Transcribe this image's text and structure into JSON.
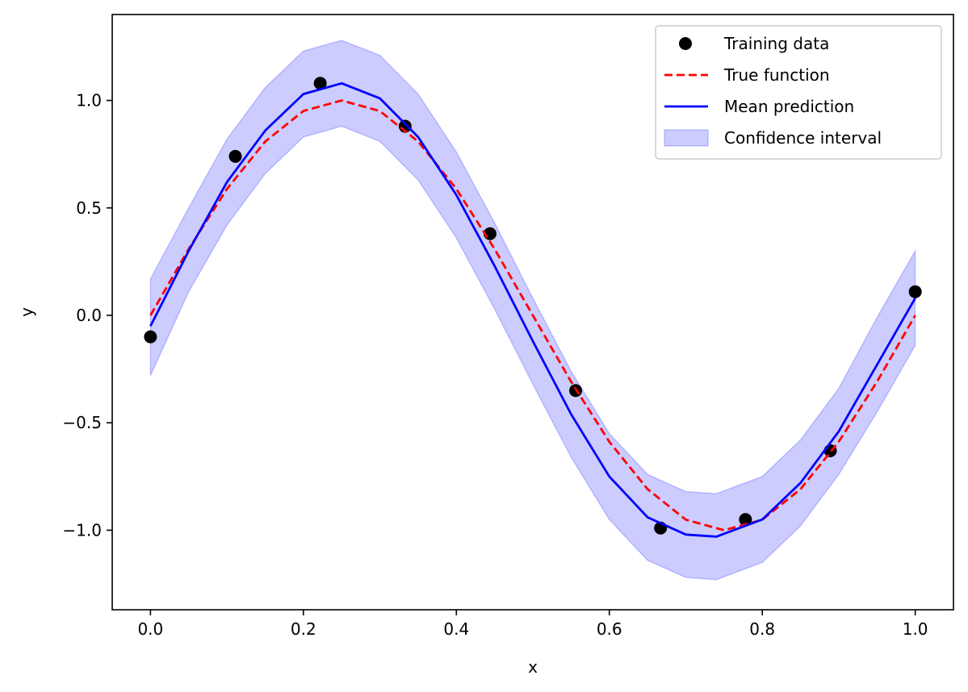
{
  "chart_data": {
    "type": "line",
    "xlabel": "x",
    "ylabel": "y",
    "xlim": [
      -0.05,
      1.05
    ],
    "ylim": [
      -1.37,
      1.4
    ],
    "grid": false,
    "legend_placement": "top-right",
    "x_ticks": [
      0.0,
      0.2,
      0.4,
      0.6,
      0.8,
      1.0
    ],
    "x_tick_labels": [
      "0.0",
      "0.2",
      "0.4",
      "0.6",
      "0.8",
      "1.0"
    ],
    "y_ticks": [
      -1.0,
      -0.5,
      0.0,
      0.5,
      1.0
    ],
    "y_tick_labels": [
      "−1.0",
      "−0.5",
      "0.0",
      "0.5",
      "1.0"
    ],
    "legend": [
      {
        "key": "training",
        "label": "Training data"
      },
      {
        "key": "true",
        "label": "True function"
      },
      {
        "key": "mean",
        "label": "Mean prediction"
      },
      {
        "key": "ci",
        "label": "Confidence interval"
      }
    ],
    "series": [
      {
        "name": "Training data",
        "kind": "scatter",
        "color": "#000000",
        "x": [
          0.0,
          0.111,
          0.222,
          0.333,
          0.444,
          0.556,
          0.667,
          0.778,
          0.889,
          1.0
        ],
        "y": [
          -0.1,
          0.74,
          1.08,
          0.88,
          0.38,
          -0.35,
          -0.99,
          -0.95,
          -0.63,
          0.11
        ]
      },
      {
        "name": "True function",
        "kind": "line",
        "style": "dashed",
        "color": "#ff0000",
        "x": [
          0.0,
          0.05,
          0.1,
          0.15,
          0.2,
          0.25,
          0.3,
          0.35,
          0.4,
          0.45,
          0.5,
          0.55,
          0.6,
          0.65,
          0.7,
          0.75,
          0.8,
          0.85,
          0.9,
          0.95,
          1.0
        ],
        "y": [
          0.0,
          0.309,
          0.588,
          0.809,
          0.951,
          1.0,
          0.951,
          0.809,
          0.588,
          0.309,
          0.0,
          -0.309,
          -0.588,
          -0.809,
          -0.951,
          -1.0,
          -0.951,
          -0.809,
          -0.588,
          -0.309,
          0.0
        ]
      },
      {
        "name": "Mean prediction",
        "kind": "line",
        "style": "solid",
        "color": "#0000ff",
        "x": [
          0.0,
          0.05,
          0.1,
          0.15,
          0.2,
          0.25,
          0.3,
          0.35,
          0.4,
          0.45,
          0.5,
          0.55,
          0.6,
          0.65,
          0.7,
          0.74,
          0.8,
          0.85,
          0.9,
          0.95,
          1.0
        ],
        "y": [
          -0.05,
          0.3,
          0.62,
          0.86,
          1.03,
          1.08,
          1.01,
          0.83,
          0.56,
          0.23,
          -0.12,
          -0.46,
          -0.75,
          -0.94,
          -1.02,
          -1.03,
          -0.95,
          -0.78,
          -0.54,
          -0.23,
          0.08
        ]
      },
      {
        "name": "Confidence interval",
        "kind": "band",
        "color": "#0000ff",
        "x": [
          0.0,
          0.05,
          0.1,
          0.15,
          0.2,
          0.25,
          0.3,
          0.35,
          0.4,
          0.45,
          0.5,
          0.55,
          0.6,
          0.65,
          0.7,
          0.74,
          0.8,
          0.85,
          0.9,
          0.95,
          1.0
        ],
        "lower": [
          -0.28,
          0.11,
          0.42,
          0.66,
          0.83,
          0.88,
          0.81,
          0.63,
          0.36,
          0.03,
          -0.32,
          -0.66,
          -0.95,
          -1.14,
          -1.22,
          -1.23,
          -1.15,
          -0.98,
          -0.74,
          -0.45,
          -0.14
        ],
        "upper": [
          0.17,
          0.5,
          0.82,
          1.06,
          1.23,
          1.28,
          1.21,
          1.03,
          0.76,
          0.43,
          0.08,
          -0.26,
          -0.55,
          -0.74,
          -0.82,
          -0.83,
          -0.75,
          -0.58,
          -0.34,
          -0.01,
          0.3
        ]
      }
    ]
  }
}
